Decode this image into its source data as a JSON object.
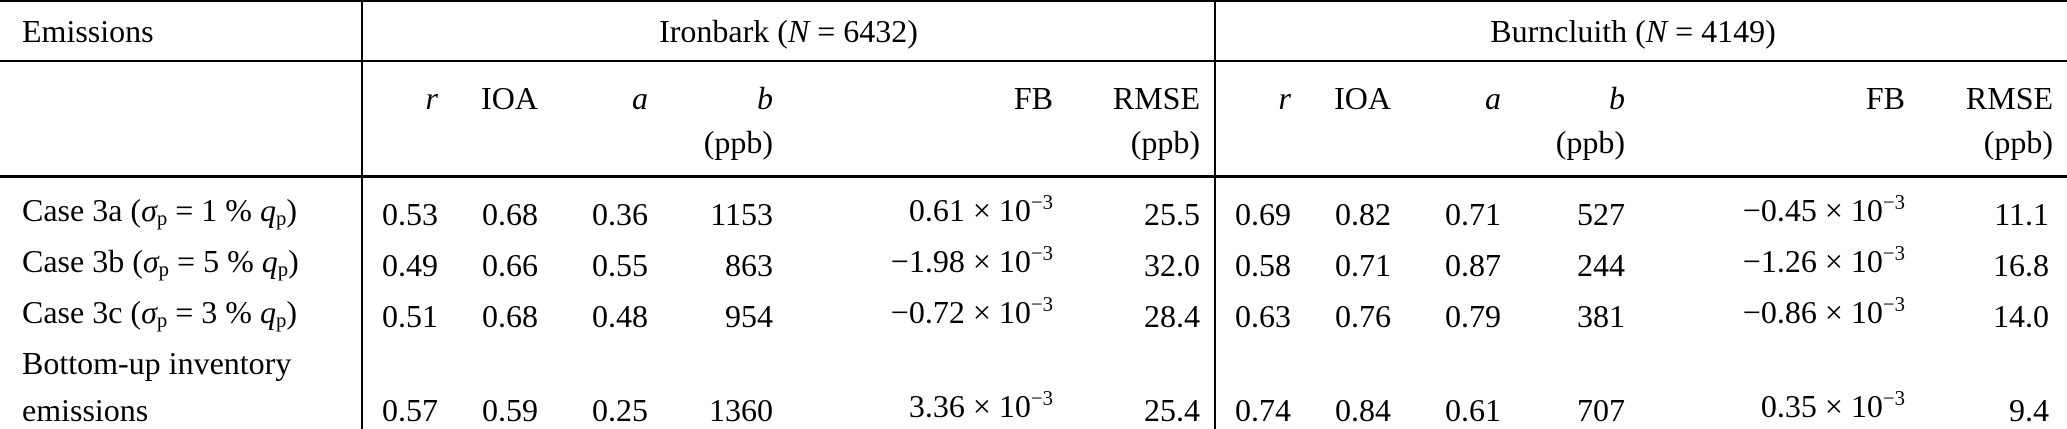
{
  "table": {
    "row_header": "Emissions",
    "groups": [
      {
        "name": "Ironbark",
        "n": "6432",
        "title_html": "Ironbark (<i>N</i> = 6432)"
      },
      {
        "name": "Burncluith",
        "n": "4149",
        "title_html": "Burncluith (<i>N</i> = 4149)"
      }
    ],
    "columns": [
      {
        "label": "r",
        "unit": ""
      },
      {
        "label": "IOA",
        "unit": ""
      },
      {
        "label": "a",
        "unit": ""
      },
      {
        "label": "b",
        "unit": "(ppb)"
      },
      {
        "label": "FB",
        "unit": ""
      },
      {
        "label": "RMSE",
        "unit": "(ppb)"
      }
    ],
    "rows": [
      {
        "label_html": "Case 3a (<i>σ</i><sub>p</sub> = 1 % <i>q</i><sub>p</sub>)",
        "ironbark": {
          "r": "0.53",
          "ioa": "0.68",
          "a": "0.36",
          "b": "1153",
          "fb_html": "0.61 × 10<sup>−3</sup>",
          "rmse": "25.5"
        },
        "burncluith": {
          "r": "0.69",
          "ioa": "0.82",
          "a": "0.71",
          "b": "527",
          "fb_html": "−0.45 × 10<sup>−3</sup>",
          "rmse": "11.1"
        }
      },
      {
        "label_html": "Case 3b (<i>σ</i><sub>p</sub> = 5 % <i>q</i><sub>p</sub>)",
        "ironbark": {
          "r": "0.49",
          "ioa": "0.66",
          "a": "0.55",
          "b": "863",
          "fb_html": "−1.98 × 10<sup>−3</sup>",
          "rmse": "32.0"
        },
        "burncluith": {
          "r": "0.58",
          "ioa": "0.71",
          "a": "0.87",
          "b": "244",
          "fb_html": "−1.26 × 10<sup>−3</sup>",
          "rmse": "16.8"
        }
      },
      {
        "label_html": "Case 3c (<i>σ</i><sub>p</sub> = 3 % <i>q</i><sub>p</sub>)",
        "ironbark": {
          "r": "0.51",
          "ioa": "0.68",
          "a": "0.48",
          "b": "954",
          "fb_html": "−0.72 × 10<sup>−3</sup>",
          "rmse": "28.4"
        },
        "burncluith": {
          "r": "0.63",
          "ioa": "0.76",
          "a": "0.79",
          "b": "381",
          "fb_html": "−0.86 × 10<sup>−3</sup>",
          "rmse": "14.0"
        }
      },
      {
        "label_html": "Bottom-up inventory<br>emissions",
        "ironbark": {
          "r": "0.57",
          "ioa": "0.59",
          "a": "0.25",
          "b": "1360",
          "fb_html": "3.36 × 10<sup>−3</sup>",
          "rmse": "25.4"
        },
        "burncluith": {
          "r": "0.74",
          "ioa": "0.84",
          "a": "0.61",
          "b": "707",
          "fb_html": "0.35 × 10<sup>−3</sup>",
          "rmse": "9.4"
        }
      }
    ]
  }
}
